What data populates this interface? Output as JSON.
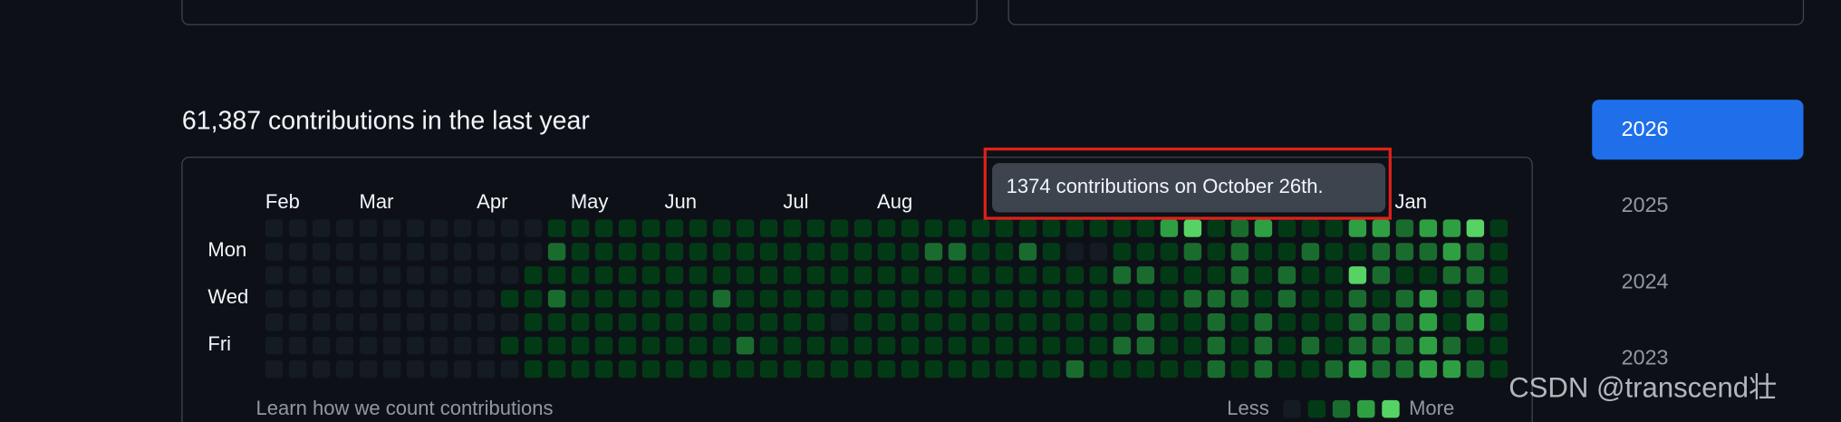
{
  "contributions": {
    "title": "61,387 contributions in the last year",
    "months": [
      "Feb",
      "Mar",
      "Apr",
      "May",
      "Jun",
      "Jul",
      "Aug",
      "Jan"
    ],
    "days": [
      "Mon",
      "Wed",
      "Fri"
    ],
    "levels": [
      [
        0,
        0,
        0,
        0,
        0,
        0,
        0,
        0,
        0,
        0,
        0,
        0,
        1,
        1,
        1,
        1,
        1,
        1,
        1,
        1,
        1,
        1,
        1,
        1,
        1,
        1,
        1,
        1,
        1,
        1,
        1,
        1,
        1,
        1,
        1,
        1,
        1,
        1,
        3,
        4,
        1,
        2,
        3,
        1,
        1,
        1,
        3,
        3,
        2,
        3,
        3,
        4,
        1
      ],
      [
        0,
        0,
        0,
        0,
        0,
        0,
        0,
        0,
        0,
        0,
        0,
        0,
        2,
        1,
        1,
        1,
        1,
        1,
        1,
        1,
        1,
        1,
        1,
        1,
        1,
        1,
        1,
        1,
        2,
        2,
        1,
        1,
        2,
        1,
        0,
        0,
        1,
        1,
        1,
        2,
        1,
        2,
        1,
        1,
        2,
        1,
        1,
        2,
        2,
        2,
        3,
        2,
        1
      ],
      [
        0,
        0,
        0,
        0,
        0,
        0,
        0,
        0,
        0,
        0,
        0,
        1,
        1,
        1,
        1,
        1,
        1,
        1,
        1,
        1,
        1,
        1,
        1,
        1,
        1,
        1,
        1,
        1,
        1,
        1,
        1,
        1,
        1,
        1,
        1,
        1,
        2,
        2,
        1,
        1,
        1,
        2,
        1,
        2,
        1,
        1,
        4,
        2,
        1,
        1,
        2,
        2,
        1
      ],
      [
        0,
        0,
        0,
        0,
        0,
        0,
        0,
        0,
        0,
        0,
        1,
        1,
        2,
        1,
        1,
        1,
        1,
        1,
        1,
        2,
        1,
        1,
        1,
        1,
        1,
        1,
        1,
        1,
        1,
        1,
        1,
        1,
        1,
        1,
        1,
        1,
        1,
        1,
        1,
        2,
        2,
        2,
        1,
        2,
        1,
        1,
        2,
        1,
        2,
        3,
        1,
        2,
        1
      ],
      [
        0,
        0,
        0,
        0,
        0,
        0,
        0,
        0,
        0,
        0,
        0,
        1,
        1,
        1,
        1,
        1,
        1,
        1,
        1,
        1,
        1,
        1,
        1,
        1,
        0,
        1,
        1,
        1,
        1,
        1,
        1,
        1,
        1,
        1,
        1,
        1,
        1,
        2,
        1,
        1,
        2,
        1,
        2,
        1,
        1,
        1,
        2,
        2,
        2,
        3,
        1,
        3,
        1
      ],
      [
        0,
        0,
        0,
        0,
        0,
        0,
        0,
        0,
        0,
        0,
        1,
        1,
        1,
        1,
        1,
        1,
        1,
        1,
        1,
        1,
        2,
        1,
        1,
        1,
        1,
        1,
        1,
        1,
        1,
        1,
        1,
        1,
        1,
        1,
        1,
        1,
        2,
        2,
        1,
        1,
        2,
        1,
        2,
        1,
        2,
        1,
        2,
        2,
        2,
        3,
        2,
        1,
        1
      ],
      [
        0,
        0,
        0,
        0,
        0,
        0,
        0,
        0,
        0,
        0,
        0,
        1,
        1,
        1,
        1,
        1,
        1,
        1,
        1,
        1,
        1,
        1,
        1,
        1,
        1,
        1,
        1,
        1,
        1,
        1,
        1,
        1,
        1,
        1,
        2,
        1,
        1,
        1,
        1,
        1,
        2,
        1,
        2,
        1,
        1,
        2,
        3,
        2,
        2,
        3,
        3,
        2,
        1
      ]
    ],
    "tooltip": "1374 contributions on October 26th.",
    "footer_link": "Learn how we count contributions",
    "legend_less": "Less",
    "legend_more": "More"
  },
  "years": [
    "2026",
    "2025",
    "2024",
    "2023"
  ],
  "watermark": "CSDN @transcend壮"
}
